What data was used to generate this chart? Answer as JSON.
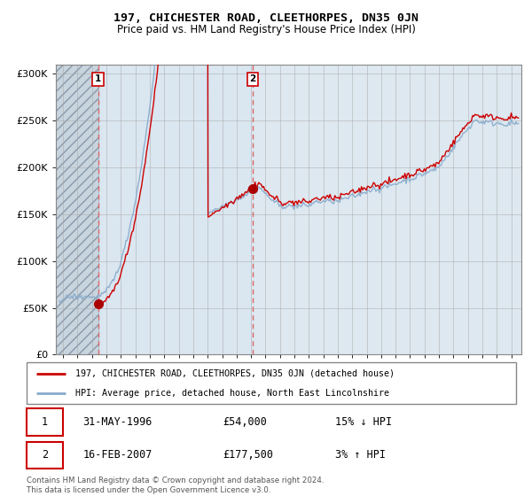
{
  "title": "197, CHICHESTER ROAD, CLEETHORPES, DN35 0JN",
  "subtitle": "Price paid vs. HM Land Registry's House Price Index (HPI)",
  "ylabel_ticks": [
    "£0",
    "£50K",
    "£100K",
    "£150K",
    "£200K",
    "£250K",
    "£300K"
  ],
  "ytick_values": [
    0,
    50000,
    100000,
    150000,
    200000,
    250000,
    300000
  ],
  "ylim": [
    0,
    310000
  ],
  "xlim_start": 1993.5,
  "xlim_end": 2025.7,
  "xticks": [
    1994,
    1995,
    1996,
    1997,
    1998,
    1999,
    2000,
    2001,
    2002,
    2003,
    2004,
    2005,
    2006,
    2007,
    2008,
    2009,
    2010,
    2011,
    2012,
    2013,
    2014,
    2015,
    2016,
    2017,
    2018,
    2019,
    2020,
    2021,
    2022,
    2023,
    2024,
    2025
  ],
  "sale1_x": 1996.42,
  "sale1_y": 54000,
  "sale1_label": "1",
  "sale2_x": 2007.12,
  "sale2_y": 177500,
  "sale2_label": "2",
  "legend_line1": "197, CHICHESTER ROAD, CLEETHORPES, DN35 0JN (detached house)",
  "legend_line2": "HPI: Average price, detached house, North East Lincolnshire",
  "table_row1": [
    "1",
    "31-MAY-1996",
    "£54,000",
    "15% ↓ HPI"
  ],
  "table_row2": [
    "2",
    "16-FEB-2007",
    "£177,500",
    "3% ↑ HPI"
  ],
  "footer": "Contains HM Land Registry data © Crown copyright and database right 2024.\nThis data is licensed under the Open Government Licence v3.0.",
  "line_color_red": "#cc0000",
  "line_color_blue": "#88aacc",
  "plot_bg_color": "#dde8f0",
  "hatch_bg_color": "#c8d4de",
  "grid_color": "#aaaaaa",
  "sale_marker_color": "#aa0000",
  "vline_color_red": "#dd6666",
  "vline_color_blue": "#99bbdd",
  "fig_width": 6.0,
  "fig_height": 5.6,
  "dpi": 100
}
